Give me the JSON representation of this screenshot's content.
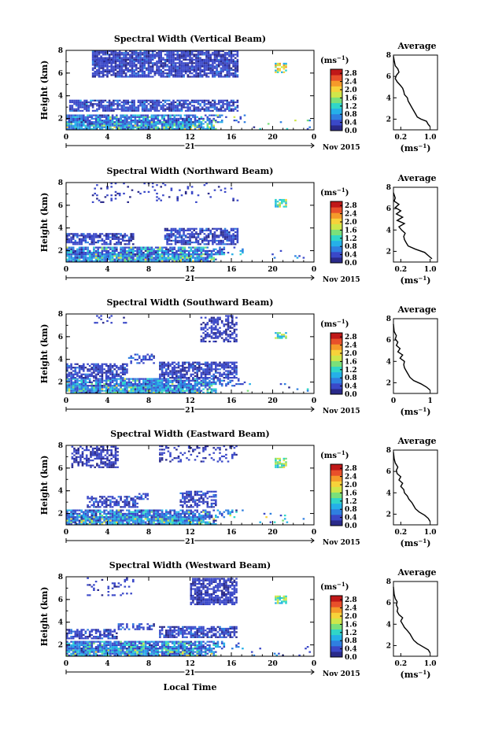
{
  "chart_data": {
    "type": "heatmap",
    "shared": {
      "x_ticks": [
        "0",
        "4",
        "8",
        "12",
        "16",
        "20",
        "0"
      ],
      "x_tick_values": [
        0,
        4,
        8,
        12,
        16,
        20,
        24
      ],
      "xlim": [
        0,
        24
      ],
      "date_lines": [
        "21",
        "Nov 2015"
      ],
      "xlabel": "Local Time",
      "ylabel": "Height (km)",
      "ylim": [
        1,
        8
      ],
      "y_ticks": [
        "8",
        "6",
        "4",
        "2"
      ],
      "colorbar_unit": "(ms",
      "colorbar_unit_exp": "−1",
      "colorbar_ticks": [
        "2.8",
        "2.4",
        "2.0",
        "1.6",
        "1.2",
        "0.8",
        "0.4",
        "0.0"
      ],
      "colorbar_range": [
        0,
        3.0
      ],
      "avg_title": "Average",
      "avg_xlabel": "(ms",
      "avg_xlabel_exp": "−1",
      "avg_ylim": [
        1,
        8
      ],
      "avg_xlim": [
        0,
        1.2
      ],
      "colorscale": [
        "#2a2a8a",
        "#3a48c8",
        "#2f7fe0",
        "#25b0e8",
        "#30d6c8",
        "#7ae07a",
        "#cfe64a",
        "#f7d23a",
        "#f59a2a",
        "#e8502a",
        "#c01818"
      ]
    },
    "panels": [
      {
        "title": "Spectral Width (Vertical Beam)",
        "avg_x_ticks": [
          "0.2",
          "1.0"
        ],
        "avg_x_tick_values": [
          0.2,
          1.0
        ],
        "avg_profile": [
          [
            1.0,
            1.3
          ],
          [
            0.95,
            1.5
          ],
          [
            0.9,
            1.8
          ],
          [
            0.75,
            2.0
          ],
          [
            0.65,
            2.2
          ],
          [
            0.6,
            2.5
          ],
          [
            0.55,
            2.8
          ],
          [
            0.5,
            3.1
          ],
          [
            0.45,
            3.4
          ],
          [
            0.4,
            3.7
          ],
          [
            0.38,
            4.0
          ],
          [
            0.3,
            4.3
          ],
          [
            0.28,
            4.6
          ],
          [
            0.25,
            4.9
          ],
          [
            0.18,
            5.2
          ],
          [
            0.1,
            5.5
          ],
          [
            0.05,
            5.8
          ],
          [
            0.08,
            6.1
          ],
          [
            0.15,
            6.4
          ],
          [
            0.12,
            6.7
          ],
          [
            0.05,
            7.0
          ],
          [
            0.02,
            7.5
          ],
          [
            0.0,
            7.9
          ]
        ]
      },
      {
        "title": "Spectral Width (Northward Beam)",
        "avg_x_ticks": [
          "0.2",
          "1.0"
        ],
        "avg_x_tick_values": [
          0.2,
          1.0
        ],
        "avg_profile": [
          [
            1.05,
            1.3
          ],
          [
            0.95,
            1.6
          ],
          [
            0.85,
            1.9
          ],
          [
            0.6,
            2.2
          ],
          [
            0.4,
            2.5
          ],
          [
            0.35,
            2.8
          ],
          [
            0.3,
            3.1
          ],
          [
            0.28,
            3.4
          ],
          [
            0.32,
            3.7
          ],
          [
            0.22,
            4.0
          ],
          [
            0.15,
            4.3
          ],
          [
            0.3,
            4.6
          ],
          [
            0.1,
            4.9
          ],
          [
            0.25,
            5.2
          ],
          [
            0.08,
            5.5
          ],
          [
            0.2,
            5.8
          ],
          [
            0.05,
            6.1
          ],
          [
            0.15,
            6.4
          ],
          [
            0.02,
            6.7
          ],
          [
            0.05,
            7.0
          ],
          [
            0.0,
            7.5
          ]
        ]
      },
      {
        "title": "Spectral Width (Southward Beam)",
        "avg_x_ticks": [
          "0",
          "1"
        ],
        "avg_x_tick_values": [
          0,
          1
        ],
        "avg_profile": [
          [
            1.0,
            1.3
          ],
          [
            0.9,
            1.6
          ],
          [
            0.75,
            1.9
          ],
          [
            0.55,
            2.2
          ],
          [
            0.45,
            2.5
          ],
          [
            0.4,
            2.8
          ],
          [
            0.35,
            3.1
          ],
          [
            0.3,
            3.4
          ],
          [
            0.28,
            3.7
          ],
          [
            0.3,
            4.0
          ],
          [
            0.18,
            4.3
          ],
          [
            0.25,
            4.6
          ],
          [
            0.12,
            4.9
          ],
          [
            0.18,
            5.2
          ],
          [
            0.08,
            5.5
          ],
          [
            0.12,
            5.8
          ],
          [
            0.05,
            6.1
          ],
          [
            0.08,
            6.4
          ],
          [
            0.02,
            6.8
          ],
          [
            0.0,
            7.5
          ]
        ]
      },
      {
        "title": "Spectral Width (Eastward Beam)",
        "avg_x_ticks": [
          "0.2",
          "1.0"
        ],
        "avg_x_tick_values": [
          0.2,
          1.0
        ],
        "avg_profile": [
          [
            1.0,
            1.3
          ],
          [
            0.95,
            1.6
          ],
          [
            0.85,
            1.9
          ],
          [
            0.7,
            2.2
          ],
          [
            0.6,
            2.5
          ],
          [
            0.55,
            2.8
          ],
          [
            0.5,
            3.1
          ],
          [
            0.42,
            3.4
          ],
          [
            0.38,
            3.7
          ],
          [
            0.3,
            4.0
          ],
          [
            0.28,
            4.3
          ],
          [
            0.2,
            4.6
          ],
          [
            0.25,
            4.9
          ],
          [
            0.15,
            5.2
          ],
          [
            0.2,
            5.5
          ],
          [
            0.1,
            5.8
          ],
          [
            0.08,
            6.1
          ],
          [
            0.12,
            6.4
          ],
          [
            0.05,
            6.8
          ],
          [
            0.02,
            7.2
          ],
          [
            0.0,
            7.8
          ]
        ]
      },
      {
        "title": "Spectral Width (Westward Beam)",
        "avg_x_ticks": [
          "0.2",
          "1.0"
        ],
        "avg_x_tick_values": [
          0.2,
          1.0
        ],
        "avg_profile": [
          [
            1.0,
            1.3
          ],
          [
            0.95,
            1.6
          ],
          [
            0.8,
            1.9
          ],
          [
            0.65,
            2.2
          ],
          [
            0.55,
            2.5
          ],
          [
            0.5,
            2.8
          ],
          [
            0.45,
            3.1
          ],
          [
            0.38,
            3.4
          ],
          [
            0.3,
            3.7
          ],
          [
            0.25,
            4.0
          ],
          [
            0.2,
            4.3
          ],
          [
            0.25,
            4.6
          ],
          [
            0.15,
            4.9
          ],
          [
            0.1,
            5.2
          ],
          [
            0.12,
            5.5
          ],
          [
            0.08,
            5.8
          ],
          [
            0.1,
            6.1
          ],
          [
            0.05,
            6.4
          ],
          [
            0.02,
            6.8
          ],
          [
            0.0,
            7.5
          ]
        ]
      }
    ]
  }
}
